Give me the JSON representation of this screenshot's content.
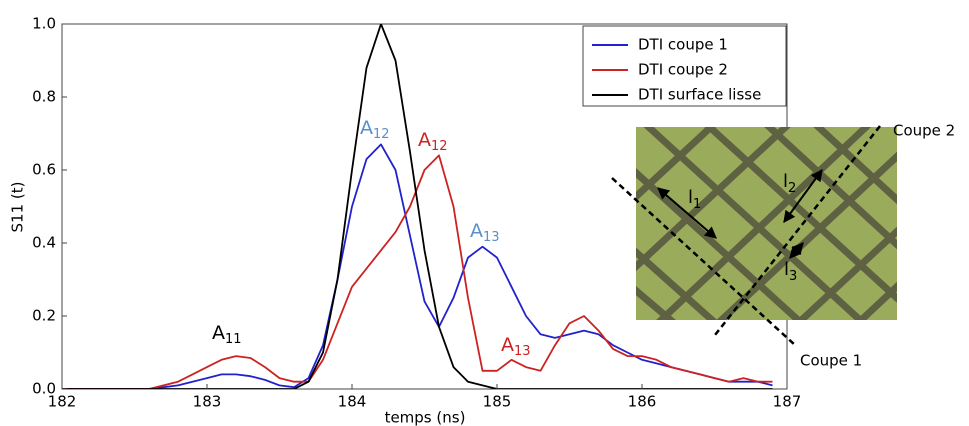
{
  "chart_data": {
    "type": "line",
    "y_label": "S11 (t)",
    "x_label": "temps (ns)",
    "xlim": [
      182,
      187
    ],
    "xticks": [
      182,
      183,
      184,
      185,
      186,
      187
    ],
    "ylim": [
      0,
      1
    ],
    "yticks": [
      {
        "value": 0,
        "label": "0.0"
      },
      0.2,
      0.4,
      0.6,
      0.8,
      {
        "value": 1,
        "label": "1.0"
      }
    ],
    "grid": false,
    "legend": "upper right",
    "x": [
      182.0,
      182.1,
      182.2,
      182.3,
      182.4,
      182.5,
      182.6,
      182.7,
      182.8,
      182.9,
      183.0,
      183.1,
      183.2,
      183.3,
      183.4,
      183.5,
      183.6,
      183.7,
      183.8,
      183.9,
      184.0,
      184.1,
      184.2,
      184.3,
      184.4,
      184.5,
      184.6,
      184.7,
      184.8,
      184.9,
      185.0,
      185.1,
      185.2,
      185.3,
      185.4,
      185.5,
      185.6,
      185.7,
      185.8,
      185.9,
      186.0,
      186.1,
      186.2,
      186.3,
      186.4,
      186.5,
      186.6,
      186.7,
      186.8,
      186.9
    ],
    "series": [
      {
        "name": "DTI coupe 1",
        "color": "#2222cc",
        "values": [
          0,
          0,
          0,
          0,
          0,
          0,
          0,
          0.005,
          0.01,
          0.02,
          0.03,
          0.04,
          0.04,
          0.035,
          0.025,
          0.01,
          0.005,
          0.03,
          0.12,
          0.3,
          0.5,
          0.63,
          0.67,
          0.6,
          0.42,
          0.24,
          0.17,
          0.25,
          0.36,
          0.39,
          0.36,
          0.28,
          0.2,
          0.15,
          0.14,
          0.15,
          0.16,
          0.15,
          0.12,
          0.1,
          0.08,
          0.07,
          0.06,
          0.05,
          0.04,
          0.03,
          0.02,
          0.02,
          0.02,
          0.01
        ]
      },
      {
        "name": "DTI coupe 2",
        "color": "#cc2222",
        "values": [
          0,
          0,
          0,
          0,
          0,
          0,
          0,
          0.01,
          0.02,
          0.04,
          0.06,
          0.08,
          0.09,
          0.085,
          0.06,
          0.03,
          0.02,
          0.02,
          0.08,
          0.18,
          0.28,
          0.33,
          0.38,
          0.43,
          0.5,
          0.6,
          0.64,
          0.5,
          0.25,
          0.05,
          0.05,
          0.08,
          0.06,
          0.05,
          0.12,
          0.18,
          0.2,
          0.16,
          0.11,
          0.09,
          0.09,
          0.08,
          0.06,
          0.05,
          0.04,
          0.03,
          0.02,
          0.03,
          0.02,
          0.02
        ]
      },
      {
        "name": "DTI surface lisse",
        "color": "#000000",
        "values": [
          0,
          0,
          0,
          0,
          0,
          0,
          0,
          0,
          0,
          0,
          0,
          0,
          0,
          0,
          0,
          0,
          0,
          0.02,
          0.1,
          0.3,
          0.6,
          0.88,
          1.0,
          0.9,
          0.65,
          0.38,
          0.17,
          0.06,
          0.02,
          0.01,
          0,
          0,
          0,
          0,
          0,
          0,
          0,
          0,
          0,
          0,
          0,
          0,
          0,
          0,
          0,
          0,
          0,
          0,
          0,
          0
        ]
      }
    ],
    "annotations": [
      {
        "text": "A",
        "sub": "11",
        "color": "#000000"
      },
      {
        "text": "A",
        "sub": "12",
        "color": "#5b8fc9"
      },
      {
        "text": "A",
        "sub": "12",
        "color": "#cc2222"
      },
      {
        "text": "A",
        "sub": "13",
        "color": "#5b8fc9"
      },
      {
        "text": "A",
        "sub": "13",
        "color": "#cc2222"
      }
    ]
  },
  "inset": {
    "cut_2": "Coupe 2",
    "cut_1": "Coupe 1",
    "lengths": [
      {
        "text": "l",
        "sub": "1"
      },
      {
        "text": "l",
        "sub": "2"
      },
      {
        "text": "l",
        "sub": "3"
      }
    ]
  }
}
